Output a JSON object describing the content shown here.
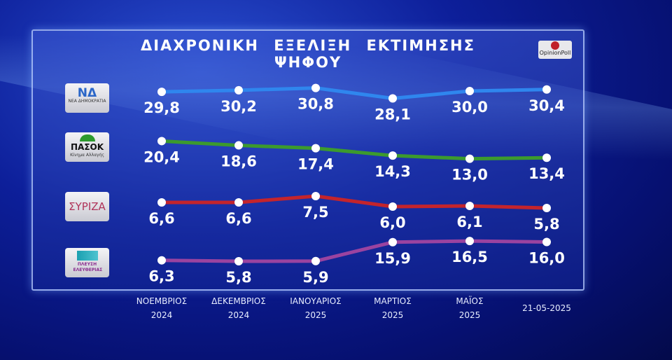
{
  "chart_data": {
    "type": "line",
    "title": "ΔΙΑΧΡΟΝΙΚΗ ΕΞΕΛΙΞΗ ΕΚΤΙΜΗΣΗΣ ΨΗΦΟΥ",
    "categories": [
      [
        "ΝΟΕΜΒΡΙΟΣ",
        "2024"
      ],
      [
        "ΔΕΚΕΜΒΡΙΟΣ",
        "2024"
      ],
      [
        "ΙΑΝΟΥΑΡΙΟΣ",
        "2025"
      ],
      [
        "ΜΑΡΤΙΟΣ",
        "2025"
      ],
      [
        "ΜΑΪΟΣ",
        "2025"
      ],
      [
        "21-05-2025",
        ""
      ]
    ],
    "series": [
      {
        "name": "ΝΔ",
        "logo_text": "ΝΕΑ ΔΗΜΟΚΡΑΤΙΑ",
        "color": "#2f86ee",
        "values": [
          29.8,
          30.2,
          30.8,
          28.1,
          30.0,
          30.4
        ],
        "labels": [
          "29,8",
          "30,2",
          "30,8",
          "28,1",
          "30,0",
          "30,4"
        ]
      },
      {
        "name": "ΠΑΣΟΚ",
        "logo_text": "Κίνημα Αλλαγής",
        "color": "#3c9a2e",
        "values": [
          20.4,
          18.6,
          17.4,
          14.3,
          13.0,
          13.4
        ],
        "labels": [
          "20,4",
          "18,6",
          "17,4",
          "14,3",
          "13,0",
          "13,4"
        ]
      },
      {
        "name": "ΣΥΡΙΖΑ",
        "logo_text": "",
        "color": "#c4242c",
        "values": [
          6.6,
          6.6,
          7.5,
          6.0,
          6.1,
          5.8
        ],
        "labels": [
          "6,6",
          "6,6",
          "7,5",
          "6,0",
          "6,1",
          "5,8"
        ]
      },
      {
        "name": "ΠΛΕΥΣΗ ΕΛΕΥΘΕΡΙΑΣ",
        "logo_text": "ΠΛΕΥΣΗ ΕΛΕΥΘΕΡΙΑΣ",
        "color": "#9a43a0",
        "values": [
          6.3,
          5.8,
          5.9,
          15.9,
          16.5,
          16.0
        ],
        "labels": [
          "6,3",
          "5,8",
          "5,9",
          "15,9",
          "16,5",
          "16,0"
        ]
      }
    ],
    "grid": false,
    "legend": "left (party logos)"
  },
  "brand": "OpinionPoll"
}
